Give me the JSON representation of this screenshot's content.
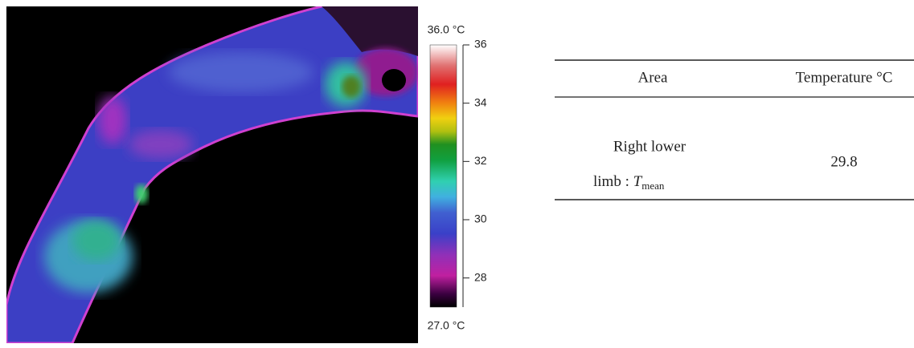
{
  "figure": {
    "colorbar": {
      "top_label": "36.0 °C",
      "bottom_label": "27.0 °C",
      "ylim": [
        27,
        36
      ],
      "yticks": [
        28,
        30,
        32,
        34,
        36
      ]
    },
    "table": {
      "header": [
        "Area",
        "Temperature °C"
      ],
      "rows": [
        [
          {
            "line1": "Right lower",
            "line2": "limb : ",
            "symbol": "T",
            "subscript": "mean"
          },
          "29.8"
        ]
      ]
    }
  }
}
